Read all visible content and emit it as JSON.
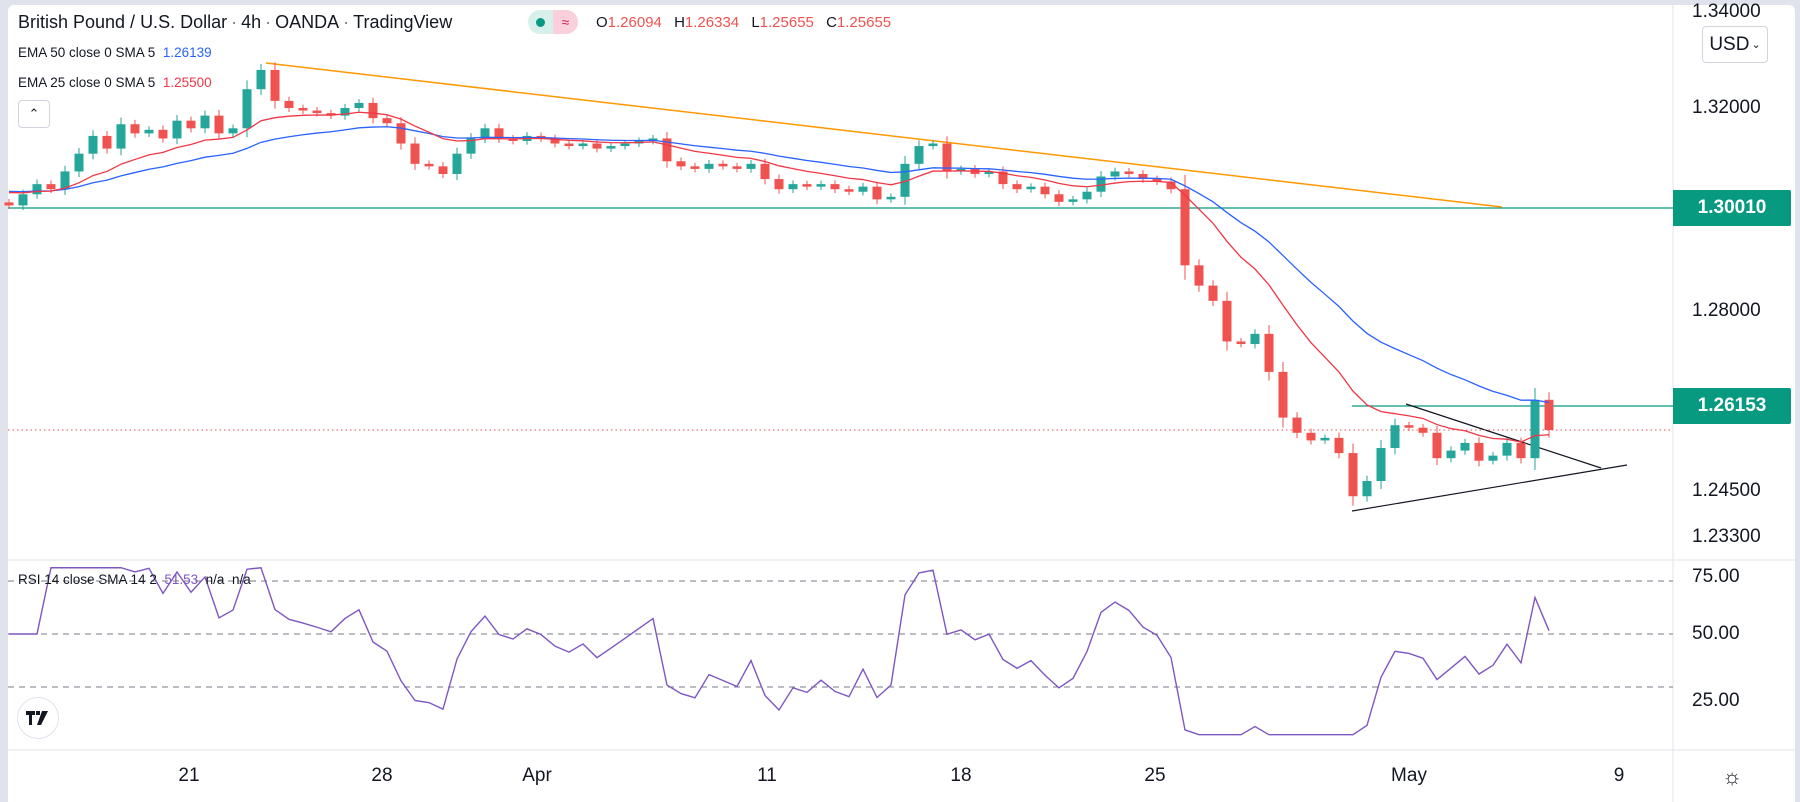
{
  "header": {
    "symbol": "British Pound / U.S. Dollar",
    "interval": "4h",
    "broker": "OANDA",
    "source": "TradingView",
    "separator": "·",
    "ohlc": [
      {
        "key": "O",
        "value": "1.26094"
      },
      {
        "key": "H",
        "value": "1.26334"
      },
      {
        "key": "L",
        "value": "1.25655"
      },
      {
        "key": "C",
        "value": "1.25655"
      }
    ],
    "status_icons": [
      "market-open-dot-icon",
      "delayed-data-icon"
    ]
  },
  "indicators": {
    "ema50": {
      "label": "EMA 50 close 0 SMA 5",
      "value": "1.26139",
      "color": "#2962ff"
    },
    "ema25": {
      "label": "EMA 25 close 0 SMA 5",
      "value": "1.25500",
      "color": "#f23645"
    },
    "rsi": {
      "label": "RSI 14 close SMA 14 2",
      "value": "51.53",
      "na1": "n/a",
      "na2": "n/a",
      "color": "#7e57c2"
    }
  },
  "collapse_button": "⌃",
  "currency": "USD",
  "price_axis": {
    "ticks": [
      "1.34000",
      "1.32000",
      "1.28000",
      "1.24500",
      "1.23300"
    ],
    "tags": [
      "1.30010",
      "1.26153"
    ]
  },
  "rsi_axis": {
    "ticks": [
      "75.00",
      "50.00",
      "25.00"
    ]
  },
  "time_axis": {
    "labels": [
      "21",
      "28",
      "Apr",
      "11",
      "18",
      "25",
      "May",
      "9"
    ]
  },
  "colors": {
    "up": "#26a69a",
    "down": "#ef5350",
    "trend": "#ff9800",
    "level": "#089981"
  },
  "chart_data": {
    "type": "candlestick",
    "title": "British Pound / U.S. Dollar · 4h · OANDA",
    "ylim": [
      1.233,
      1.341
    ],
    "levels": [
      1.3001,
      1.26153
    ],
    "last_price": 1.25655,
    "closes": [
      1.3008,
      1.303,
      1.305,
      1.304,
      1.3075,
      1.311,
      1.3145,
      1.312,
      1.3168,
      1.315,
      1.3157,
      1.314,
      1.3175,
      1.316,
      1.3185,
      1.315,
      1.316,
      1.3237,
      1.3275,
      1.3214,
      1.32,
      1.3195,
      1.319,
      1.3185,
      1.32,
      1.321,
      1.318,
      1.317,
      1.313,
      1.309,
      1.3085,
      1.307,
      1.311,
      1.314,
      1.316,
      1.314,
      1.3135,
      1.3145,
      1.314,
      1.313,
      1.3125,
      1.313,
      1.312,
      1.3125,
      1.313,
      1.3135,
      1.314,
      1.3095,
      1.3085,
      1.308,
      1.309,
      1.3085,
      1.308,
      1.309,
      1.306,
      1.304,
      1.305,
      1.3045,
      1.305,
      1.304,
      1.3035,
      1.3045,
      1.302,
      1.3025,
      1.309,
      1.3125,
      1.313,
      1.3075,
      1.308,
      1.307,
      1.3075,
      1.305,
      1.304,
      1.3045,
      1.303,
      1.3015,
      1.302,
      1.3035,
      1.3065,
      1.3075,
      1.307,
      1.306,
      1.3055,
      1.304,
      1.289,
      1.285,
      1.282,
      1.274,
      1.2735,
      1.2755,
      1.268,
      1.259,
      1.256,
      1.2545,
      1.255,
      1.252,
      1.2435,
      1.2465,
      1.253,
      1.2575,
      1.257,
      1.256,
      1.251,
      1.2525,
      1.254,
      1.2505,
      1.2515,
      1.254,
      1.251,
      1.2625,
      1.25655
    ],
    "rsi_ylim": [
      0,
      100
    ],
    "rsi_bands": [
      70,
      50,
      30
    ]
  }
}
